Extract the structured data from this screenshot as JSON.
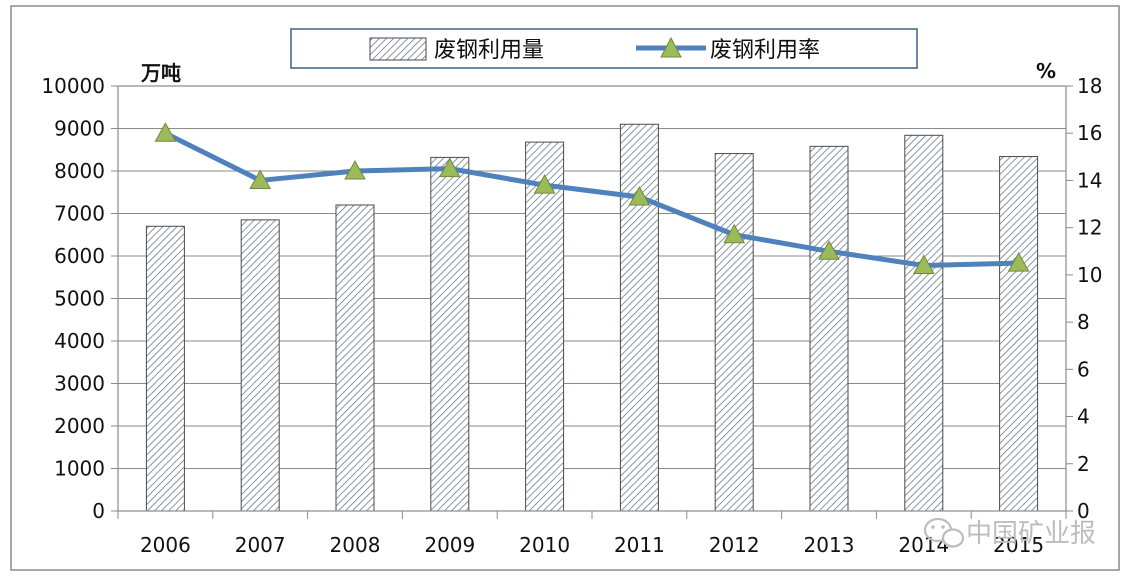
{
  "chart_data": {
    "type": "bar",
    "categories": [
      "2006",
      "2007",
      "2008",
      "2009",
      "2010",
      "2011",
      "2012",
      "2013",
      "2014",
      "2015"
    ],
    "series": [
      {
        "name": "废钢利用量",
        "type": "bar",
        "axis": "left",
        "values": [
          6700,
          6850,
          7200,
          8320,
          8680,
          9100,
          8410,
          8580,
          8840,
          8340
        ]
      },
      {
        "name": "废钢利用率",
        "type": "line",
        "axis": "right",
        "marker": "triangle",
        "values": [
          16.0,
          14.0,
          14.4,
          14.5,
          13.8,
          13.3,
          11.7,
          11.0,
          10.4,
          10.5
        ]
      }
    ],
    "ylabel": "万吨",
    "ylim": [
      0,
      10000
    ],
    "yticks": [
      0,
      1000,
      2000,
      3000,
      4000,
      5000,
      6000,
      7000,
      8000,
      9000,
      10000
    ],
    "y2label": "%",
    "y2lim": [
      0,
      18
    ],
    "y2ticks": [
      0,
      2,
      4,
      6,
      8,
      10,
      12,
      14,
      16,
      18
    ],
    "grid": true,
    "legend_position": "top-center",
    "colors": {
      "bar_stroke": "#4a4a4a",
      "bar_hatch": "#6a7a90",
      "line": "#4f81bd",
      "marker_fill": "#9bbb59",
      "marker_stroke": "#71893f"
    }
  },
  "watermark": {
    "text": "中国矿业报",
    "icon": "wechat-icon"
  }
}
